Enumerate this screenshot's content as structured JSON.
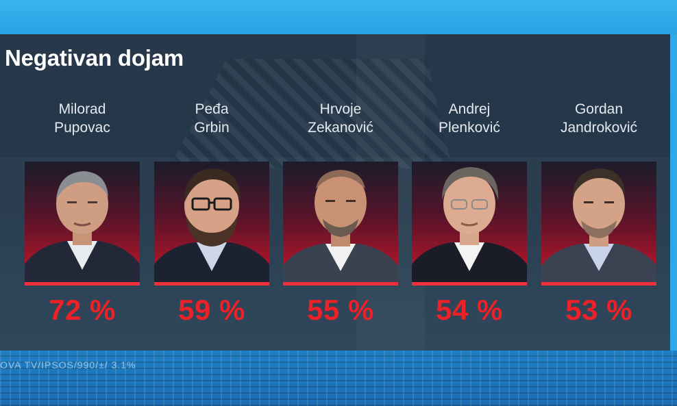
{
  "title": "Negativan dojam",
  "candidates": [
    {
      "first": "Milorad",
      "last": "Pupovac",
      "value": "72 %"
    },
    {
      "first": "Peđa",
      "last": "Grbin",
      "value": "59 %"
    },
    {
      "first": "Hrvoje",
      "last": "Zekanović",
      "value": "55 %"
    },
    {
      "first": "Andrej",
      "last": "Plenković",
      "value": "54 %"
    },
    {
      "first": "Gordan",
      "last": "Jandroković",
      "value": "53 %"
    }
  ],
  "source": "OVA TV/IPSOS/990/±/ 3.1%",
  "colors": {
    "accent": "#ee2028",
    "panel": "#25384a",
    "sky": "#2fa9e6"
  }
}
